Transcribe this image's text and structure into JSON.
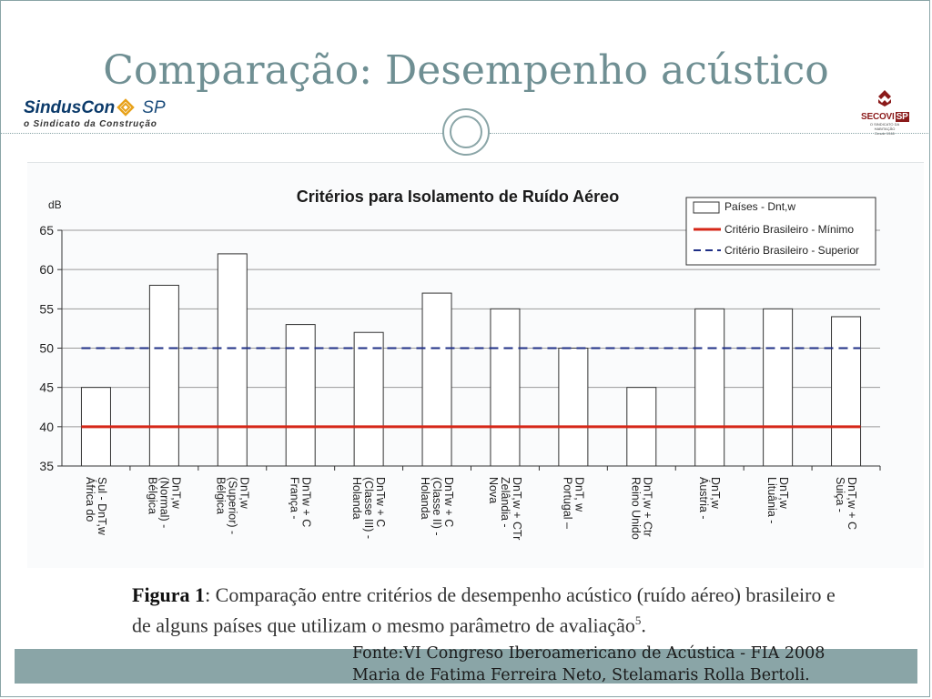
{
  "slide": {
    "title": "Comparação: Desempenho acústico",
    "logo_left": {
      "brand": "SindusCon",
      "brand_suffix": "SP",
      "tagline": "o Sindicato da Construção"
    },
    "logo_right": {
      "name": "SECOVI",
      "badge": "SP",
      "subtitle": "O SINDICATO DA HABITAÇÃO",
      "since": "Desde 1946"
    },
    "caption_label": "Figura 1",
    "caption_text": ": Comparação entre critérios de desempenho acústico (ruído aéreo) brasileiro e de alguns países que utilizam o mesmo parâmetro de avaliação",
    "caption_footnote": "5",
    "caption_end": ".",
    "source_line1": "Fonte:VI Congreso Iberoamericano de Acústica - FIA 2008",
    "source_line2": "Maria de Fatima Ferreira Neto,  Stelamaris Rolla Bertoli.",
    "colors": {
      "accent": "#8aa5a7",
      "title": "#6f8f93",
      "minimum_line": "#d62718",
      "superior_line": "#1f2f86"
    }
  },
  "chart_data": {
    "type": "bar",
    "title": "Critérios para Isolamento de Ruído Aéreo",
    "ylabel": "dB",
    "ylim": [
      35,
      65
    ],
    "yticks": [
      35,
      40,
      45,
      50,
      55,
      60,
      65
    ],
    "grid": true,
    "legend_position": "top-right",
    "categories": [
      [
        "África do",
        "Sul - DnT,w"
      ],
      [
        "Bélgica",
        "(Normal) -",
        "DnT,w"
      ],
      [
        "Bélgica",
        "(Superior) -",
        "DnT,w"
      ],
      [
        "França -",
        "DnTw + C"
      ],
      [
        "Holanda",
        "(Classe III) -",
        "DnTw + C"
      ],
      [
        "Holanda",
        "(Classe II) -",
        "DnTw + C"
      ],
      [
        "Nova",
        "Zelândia -",
        "DnT,w + CTr"
      ],
      [
        "Portugal –",
        "DnT, w"
      ],
      [
        "Reino Unido",
        "DnT,w + Ctr"
      ],
      [
        "Áustria  -",
        "DnT,w"
      ],
      [
        "Lituânia -",
        "DnT,w"
      ],
      [
        "Suiça -",
        "DnT,w + C"
      ]
    ],
    "series": [
      {
        "name": "Países - Dnt,w",
        "type": "bar",
        "values": [
          45,
          58,
          62,
          53,
          52,
          57,
          55,
          50,
          45,
          55,
          55,
          54
        ]
      },
      {
        "name": "Critério Brasileiro -  Mínimo",
        "type": "line",
        "value": 40
      },
      {
        "name": "Critério Brasileiro - Superior",
        "type": "dashed-line",
        "value": 50
      }
    ]
  }
}
